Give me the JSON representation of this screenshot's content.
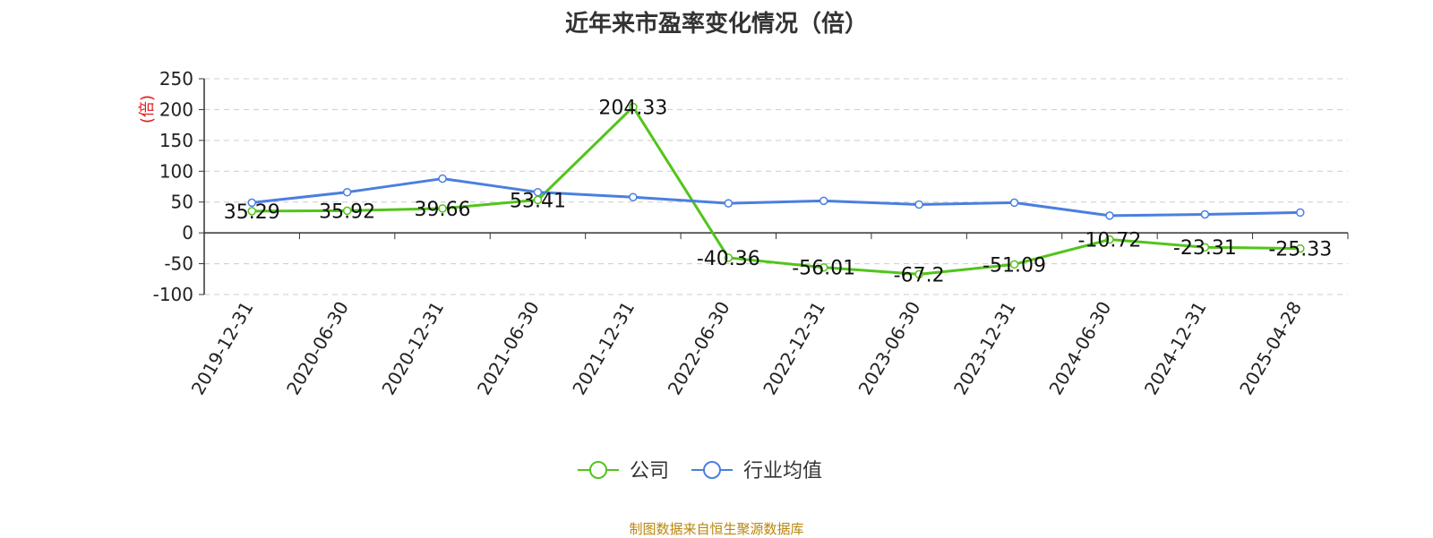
{
  "title": "近年来市盈率变化情况（倍）",
  "source": "制图数据来自恒生聚源数据库",
  "chart_data": {
    "type": "line",
    "title": "近年来市盈率变化情况（倍）",
    "ylabel": "(倍)",
    "ylim": [
      -100,
      250
    ],
    "yticks": [
      -100,
      -50,
      0,
      50,
      100,
      150,
      200,
      250
    ],
    "grid": true,
    "legend_position": "bottom-center",
    "categories": [
      "2019-12-31",
      "2020-06-30",
      "2020-12-31",
      "2021-06-30",
      "2021-12-31",
      "2022-06-30",
      "2022-12-31",
      "2023-06-30",
      "2023-12-31",
      "2024-06-30",
      "2024-12-31",
      "2025-04-28"
    ],
    "series": [
      {
        "name": "公司",
        "color": "#52c41a",
        "values": [
          35.29,
          35.92,
          39.66,
          53.41,
          204.33,
          -40.36,
          -56.01,
          -67.2,
          -51.09,
          -10.72,
          -23.31,
          -25.33
        ],
        "labels": [
          "35.29",
          "35.92",
          "39.66",
          "53.41",
          "204.33",
          "-40.36",
          "-56.01",
          "-67.2",
          "-51.09",
          "-10.72",
          "-23.31",
          "-25.33"
        ]
      },
      {
        "name": "行业均值",
        "color": "#4a7fe0",
        "values": [
          49,
          66,
          88,
          66,
          58,
          48,
          52,
          46,
          49,
          28,
          30,
          33
        ]
      }
    ]
  }
}
